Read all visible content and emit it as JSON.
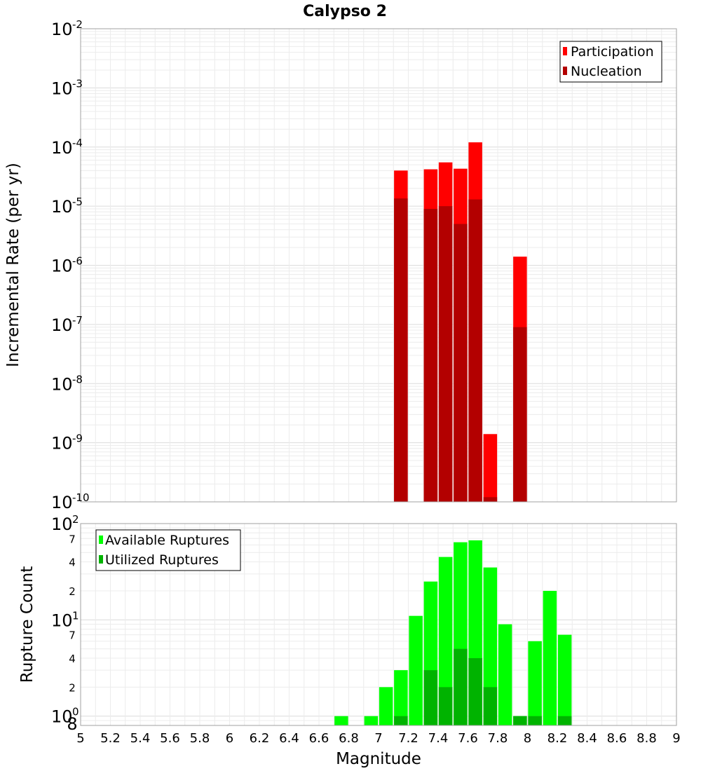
{
  "chart_data": [
    {
      "type": "bar",
      "title": "Calypso 2",
      "ylabel": "Incremental Rate (per yr)",
      "yscale": "log",
      "ylim": [
        1e-10,
        0.01
      ],
      "xlim": [
        5,
        9
      ],
      "legend_position": "top-right",
      "y_ticks": [
        {
          "base": "10",
          "exp": "-2",
          "value": 0.01
        },
        {
          "base": "10",
          "exp": "-3",
          "value": 0.001
        },
        {
          "base": "10",
          "exp": "-4",
          "value": 0.0001
        },
        {
          "base": "10",
          "exp": "-5",
          "value": 1e-05
        },
        {
          "base": "10",
          "exp": "-6",
          "value": 1e-06
        },
        {
          "base": "10",
          "exp": "-7",
          "value": 1e-07
        },
        {
          "base": "10",
          "exp": "-8",
          "value": 1e-08
        },
        {
          "base": "10",
          "exp": "-9",
          "value": 1e-09
        },
        {
          "base": "10",
          "exp": "-10",
          "value": 1e-10
        }
      ],
      "series": [
        {
          "name": "Participation",
          "color": "#ff0000",
          "points": [
            {
              "x": 7.15,
              "y": 4e-05
            },
            {
              "x": 7.35,
              "y": 4.2e-05
            },
            {
              "x": 7.45,
              "y": 5.5e-05
            },
            {
              "x": 7.55,
              "y": 4.3e-05
            },
            {
              "x": 7.65,
              "y": 0.00012
            },
            {
              "x": 7.75,
              "y": 1.4e-09
            },
            {
              "x": 7.95,
              "y": 1.4e-06
            }
          ]
        },
        {
          "name": "Nucleation",
          "color": "#b30000",
          "points": [
            {
              "x": 7.15,
              "y": 1.35e-05
            },
            {
              "x": 7.35,
              "y": 9e-06
            },
            {
              "x": 7.45,
              "y": 1e-05
            },
            {
              "x": 7.55,
              "y": 5e-06
            },
            {
              "x": 7.65,
              "y": 1.3e-05
            },
            {
              "x": 7.75,
              "y": 1.2e-10
            },
            {
              "x": 7.95,
              "y": 9e-08
            }
          ]
        }
      ]
    },
    {
      "type": "bar",
      "xlabel": "Magnitude",
      "ylabel": "Rupture Count",
      "yscale": "log",
      "ylim": [
        0.8,
        100
      ],
      "xlim": [
        5,
        9
      ],
      "legend_position": "top-left",
      "x_ticks": [
        "5",
        "5.2",
        "5.4",
        "5.6",
        "5.8",
        "6",
        "6.2",
        "6.4",
        "6.6",
        "6.8",
        "7",
        "7.2",
        "7.4",
        "7.6",
        "7.8",
        "8",
        "8.2",
        "8.4",
        "8.6",
        "8.8",
        "9"
      ],
      "y_major_ticks": [
        {
          "base": "10",
          "exp": "2",
          "value": 100
        },
        {
          "base": "10",
          "exp": "1",
          "value": 10
        },
        {
          "base": "10",
          "exp": "0",
          "value": 1
        }
      ],
      "y_minor_ticks": [
        {
          "label": "7",
          "value": 70
        },
        {
          "label": "4",
          "value": 40
        },
        {
          "label": "2",
          "value": 20
        },
        {
          "label": "7",
          "value": 7
        },
        {
          "label": "4",
          "value": 4
        },
        {
          "label": "2",
          "value": 2
        },
        {
          "label": "8",
          "value": 0.8
        }
      ],
      "series": [
        {
          "name": "Available Ruptures",
          "color": "#00ff00",
          "points": [
            {
              "x": 6.75,
              "y": 1
            },
            {
              "x": 6.95,
              "y": 1
            },
            {
              "x": 7.05,
              "y": 2
            },
            {
              "x": 7.15,
              "y": 3
            },
            {
              "x": 7.25,
              "y": 11
            },
            {
              "x": 7.35,
              "y": 25
            },
            {
              "x": 7.45,
              "y": 45
            },
            {
              "x": 7.55,
              "y": 64
            },
            {
              "x": 7.65,
              "y": 67
            },
            {
              "x": 7.75,
              "y": 35
            },
            {
              "x": 7.85,
              "y": 9
            },
            {
              "x": 7.95,
              "y": 1
            },
            {
              "x": 8.05,
              "y": 6
            },
            {
              "x": 8.15,
              "y": 20
            },
            {
              "x": 8.25,
              "y": 7
            }
          ]
        },
        {
          "name": "Utilized Ruptures",
          "color": "#00b300",
          "points": [
            {
              "x": 7.15,
              "y": 1
            },
            {
              "x": 7.35,
              "y": 3
            },
            {
              "x": 7.45,
              "y": 2
            },
            {
              "x": 7.55,
              "y": 5
            },
            {
              "x": 7.65,
              "y": 4
            },
            {
              "x": 7.75,
              "y": 2
            },
            {
              "x": 7.95,
              "y": 1
            },
            {
              "x": 8.05,
              "y": 1
            },
            {
              "x": 8.25,
              "y": 1
            }
          ]
        }
      ]
    }
  ]
}
